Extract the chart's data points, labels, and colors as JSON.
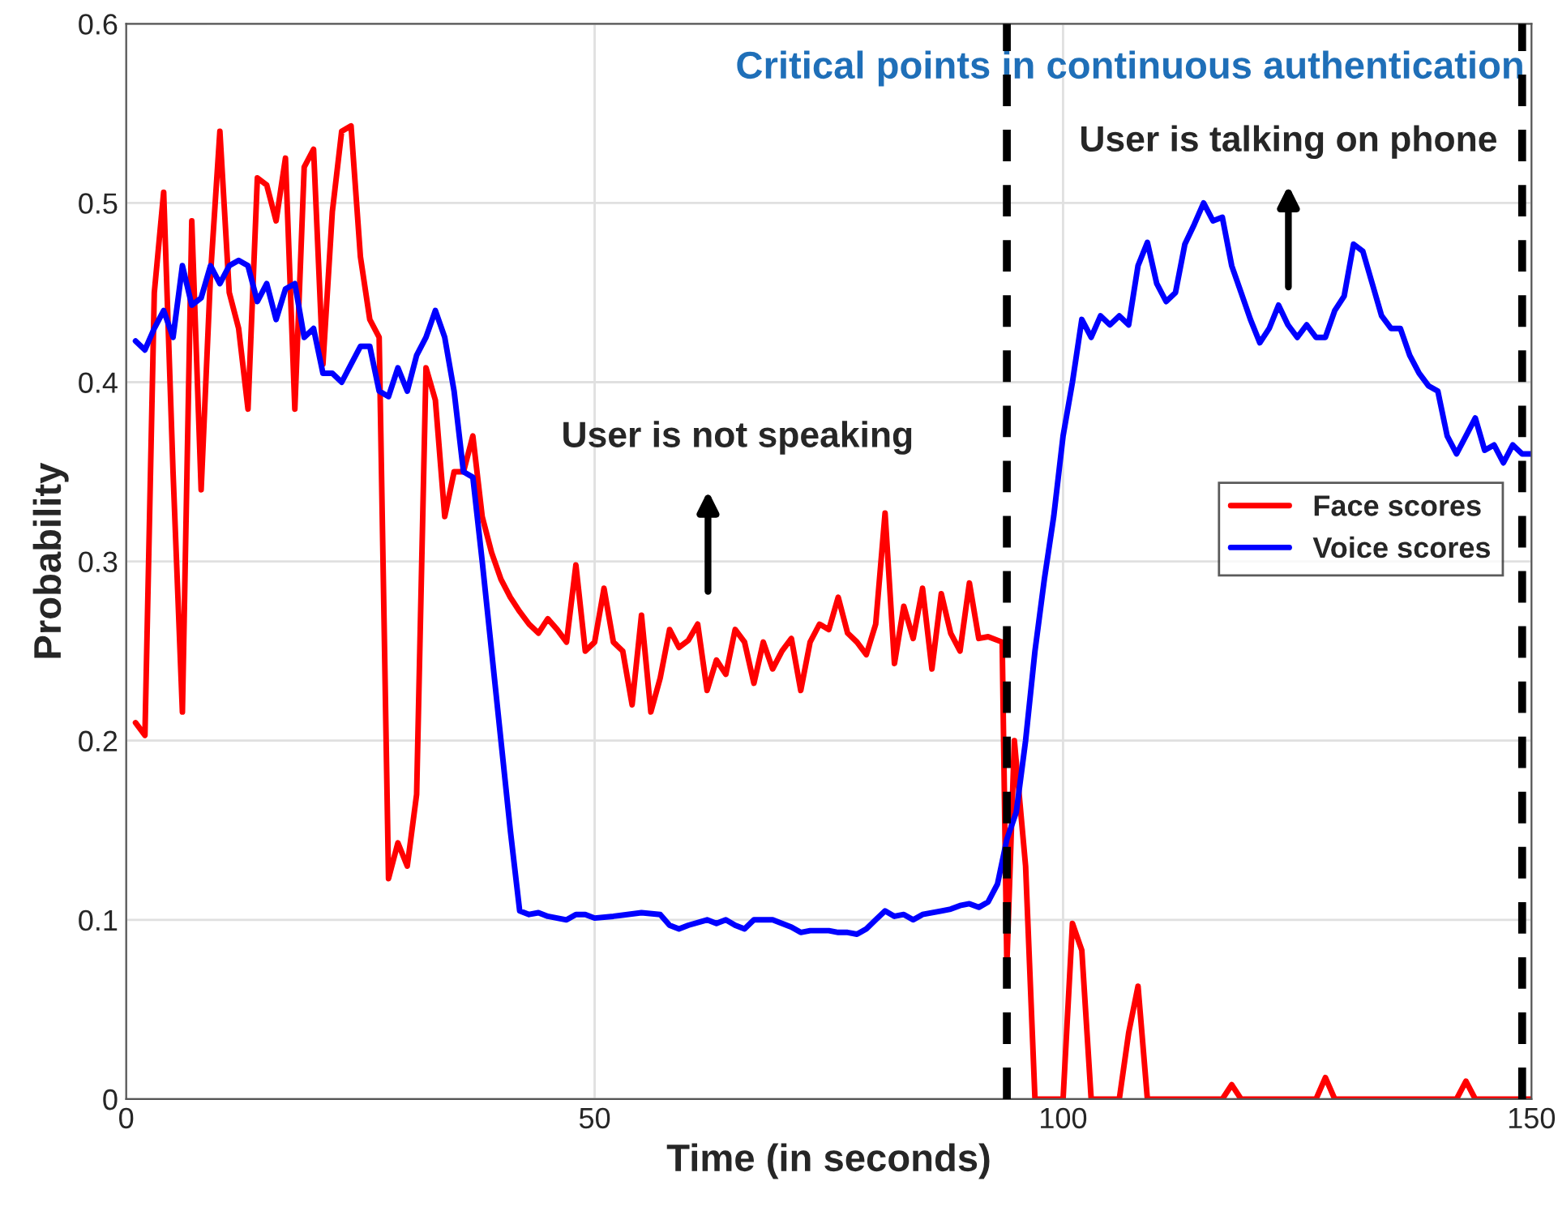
{
  "chart_data": {
    "type": "line",
    "title": "Critical points in continuous authentication",
    "xlabel": "Time (in seconds)",
    "ylabel": "Probability",
    "xlim": [
      0,
      150
    ],
    "ylim": [
      0,
      0.6
    ],
    "xticks": [
      0,
      50,
      100,
      150
    ],
    "yticks": [
      0,
      0.1,
      0.2,
      0.3,
      0.4,
      0.5,
      0.6
    ],
    "grid": true,
    "legend": "right",
    "line_style": "solid",
    "series": [
      {
        "name": "Face scores",
        "color": "#ff0000",
        "x": [
          1,
          2,
          3,
          4,
          5,
          6,
          7,
          8,
          9,
          10,
          11,
          12,
          13,
          14,
          15,
          16,
          17,
          18,
          19,
          20,
          21,
          22,
          23,
          24,
          25,
          26,
          27,
          28,
          29,
          30,
          31,
          32,
          33,
          34,
          35,
          36,
          37,
          38,
          39,
          40,
          41,
          42,
          43,
          44,
          45,
          46,
          47,
          48,
          49,
          50,
          51,
          52,
          53,
          54,
          55,
          56,
          57,
          58,
          59,
          60,
          61,
          62,
          63,
          64,
          65,
          66,
          67,
          68,
          69,
          70,
          71,
          72,
          73,
          74,
          75,
          76,
          77,
          78,
          79,
          80,
          81,
          82,
          83,
          84,
          85,
          86,
          87,
          88,
          89,
          90,
          91,
          92,
          93.5,
          94,
          94.8,
          96,
          97,
          100,
          101,
          102,
          103,
          106,
          107,
          108,
          109,
          117,
          118,
          119,
          127,
          128,
          129,
          142,
          143,
          144,
          150
        ],
        "values": [
          0.21,
          0.203,
          0.45,
          0.506,
          0.35,
          0.216,
          0.49,
          0.34,
          0.46,
          0.54,
          0.45,
          0.43,
          0.385,
          0.514,
          0.51,
          0.49,
          0.525,
          0.385,
          0.52,
          0.53,
          0.41,
          0.495,
          0.54,
          0.543,
          0.47,
          0.435,
          0.425,
          0.123,
          0.143,
          0.13,
          0.17,
          0.408,
          0.39,
          0.325,
          0.35,
          0.35,
          0.37,
          0.325,
          0.305,
          0.29,
          0.28,
          0.272,
          0.265,
          0.26,
          0.268,
          0.262,
          0.255,
          0.298,
          0.25,
          0.255,
          0.285,
          0.255,
          0.25,
          0.22,
          0.27,
          0.216,
          0.235,
          0.262,
          0.252,
          0.256,
          0.265,
          0.228,
          0.245,
          0.237,
          0.262,
          0.255,
          0.232,
          0.255,
          0.24,
          0.25,
          0.257,
          0.228,
          0.255,
          0.265,
          0.262,
          0.28,
          0.26,
          0.255,
          0.248,
          0.265,
          0.327,
          0.243,
          0.275,
          0.257,
          0.285,
          0.24,
          0.282,
          0.26,
          0.25,
          0.288,
          0.257,
          0.258,
          0.255,
          0.075,
          0.2,
          0.13,
          0,
          0,
          0.098,
          0.083,
          0,
          0,
          0.037,
          0.063,
          0,
          0,
          0.008,
          0,
          0,
          0.012,
          0,
          0,
          0.01,
          0,
          0
        ]
      },
      {
        "name": "Voice scores",
        "color": "#0000ff",
        "x": [
          1,
          2,
          3,
          4,
          5,
          6,
          7,
          8,
          9,
          10,
          11,
          12,
          13,
          14,
          15,
          16,
          17,
          18,
          19,
          20,
          21,
          22,
          23,
          24,
          25,
          26,
          27,
          28,
          29,
          30,
          31,
          32,
          33,
          34,
          35,
          36,
          37,
          38,
          39,
          40,
          41,
          42,
          43,
          44,
          45,
          46,
          47,
          48,
          49,
          50,
          52,
          55,
          57,
          58,
          59,
          60,
          62,
          63,
          64,
          65,
          66,
          67,
          69,
          70,
          71,
          72,
          73,
          75,
          76,
          77,
          78,
          79,
          80,
          81,
          82,
          83,
          84,
          85,
          87,
          88,
          89,
          90,
          91,
          92,
          93,
          94,
          95,
          96,
          97,
          98,
          99,
          100,
          101,
          102,
          103,
          104,
          105,
          106,
          107,
          108,
          109,
          110,
          111,
          112,
          113,
          114,
          115,
          116,
          117,
          118,
          119,
          120,
          121,
          122,
          123,
          124,
          125,
          126,
          127,
          128,
          129,
          130,
          131,
          132,
          133,
          134,
          135,
          136,
          137,
          138,
          139,
          140,
          141,
          142,
          143,
          144,
          145,
          146,
          147,
          148,
          149,
          150
        ],
        "values": [
          0.423,
          0.418,
          0.43,
          0.44,
          0.425,
          0.465,
          0.443,
          0.447,
          0.465,
          0.455,
          0.465,
          0.468,
          0.465,
          0.445,
          0.455,
          0.435,
          0.452,
          0.455,
          0.425,
          0.43,
          0.405,
          0.405,
          0.4,
          0.41,
          0.42,
          0.42,
          0.395,
          0.392,
          0.408,
          0.395,
          0.415,
          0.425,
          0.44,
          0.425,
          0.395,
          0.35,
          0.347,
          0.3,
          0.25,
          0.2,
          0.15,
          0.105,
          0.103,
          0.104,
          0.102,
          0.101,
          0.1,
          0.103,
          0.103,
          0.101,
          0.102,
          0.104,
          0.103,
          0.097,
          0.095,
          0.097,
          0.1,
          0.098,
          0.1,
          0.097,
          0.095,
          0.1,
          0.1,
          0.098,
          0.096,
          0.093,
          0.094,
          0.094,
          0.093,
          0.093,
          0.092,
          0.095,
          0.1,
          0.105,
          0.102,
          0.103,
          0.1,
          0.103,
          0.105,
          0.106,
          0.108,
          0.109,
          0.107,
          0.11,
          0.12,
          0.145,
          0.16,
          0.2,
          0.25,
          0.29,
          0.325,
          0.37,
          0.4,
          0.435,
          0.425,
          0.437,
          0.432,
          0.437,
          0.432,
          0.465,
          0.478,
          0.455,
          0.445,
          0.45,
          0.477,
          0.488,
          0.5,
          0.49,
          0.492,
          0.465,
          0.45,
          0.435,
          0.422,
          0.43,
          0.443,
          0.432,
          0.425,
          0.432,
          0.425,
          0.425,
          0.44,
          0.448,
          0.477,
          0.473,
          0.455,
          0.437,
          0.43,
          0.43,
          0.415,
          0.405,
          0.398,
          0.395,
          0.37,
          0.36,
          0.37,
          0.38,
          0.362,
          0.365,
          0.355,
          0.365,
          0.36,
          0.36
        ]
      }
    ],
    "ref_lines": [
      {
        "axis": "x",
        "value": 94,
        "color": "#000000",
        "line_style": "dashed"
      },
      {
        "axis": "x",
        "value": 149,
        "color": "#000000",
        "line_style": "dashed"
      }
    ],
    "annotations": [
      "User is not speaking",
      "User is talking on phone"
    ]
  }
}
